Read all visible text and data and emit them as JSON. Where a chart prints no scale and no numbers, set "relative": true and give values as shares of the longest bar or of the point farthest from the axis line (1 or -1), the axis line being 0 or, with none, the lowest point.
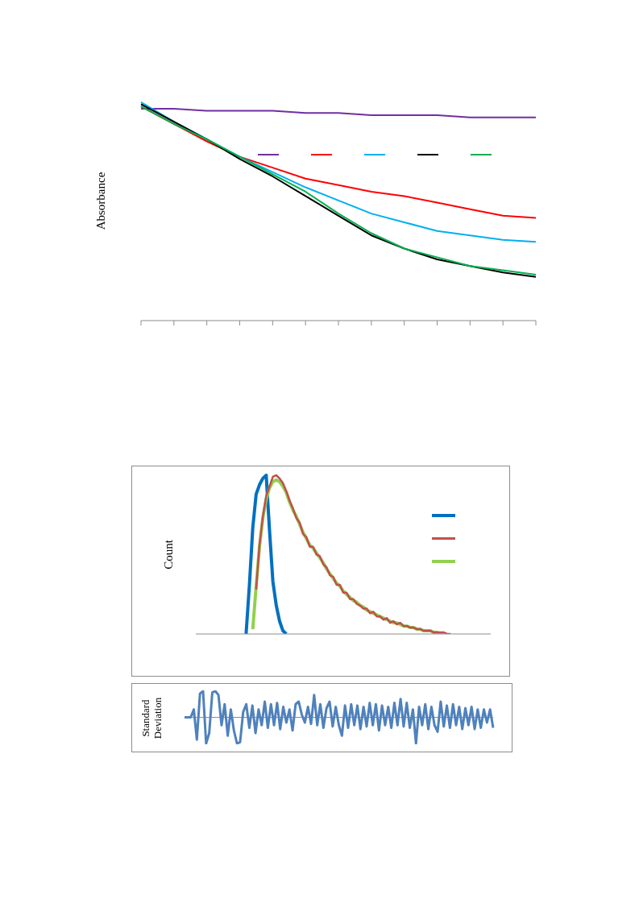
{
  "chart_data": [
    {
      "type": "line",
      "ylabel": "Absorbance",
      "relative": true,
      "marker": "none",
      "grid": false,
      "categories": [
        null,
        null,
        null,
        null,
        null,
        null,
        null,
        null,
        null,
        null,
        null,
        null,
        null
      ],
      "series": [
        {
          "color": "#7030a0",
          "values": [
            0.97,
            0.97,
            0.96,
            0.96,
            0.96,
            0.95,
            0.95,
            0.94,
            0.94,
            0.94,
            0.93,
            0.93,
            0.93
          ]
        },
        {
          "color": "#ff0000",
          "values": [
            0.98,
            0.9,
            0.82,
            0.75,
            0.7,
            0.65,
            0.62,
            0.59,
            0.57,
            0.54,
            0.51,
            0.48,
            0.47
          ]
        },
        {
          "color": "#00b0f0",
          "values": [
            1,
            0.91,
            0.83,
            0.75,
            0.68,
            0.61,
            0.55,
            0.49,
            0.45,
            0.41,
            0.39,
            0.37,
            0.36
          ]
        },
        {
          "color": "#000000",
          "values": [
            0.99,
            0.91,
            0.83,
            0.74,
            0.66,
            0.57,
            0.48,
            0.39,
            0.33,
            0.28,
            0.25,
            0.22,
            0.2
          ]
        },
        {
          "color": "#00b050",
          "values": [
            0.98,
            0.9,
            0.83,
            0.75,
            0.67,
            0.59,
            0.49,
            0.4,
            0.33,
            0.29,
            0.25,
            0.23,
            0.21
          ]
        }
      ]
    },
    {
      "type": "line",
      "ylabel": "Count",
      "relative": true,
      "marker": "none",
      "grid": false,
      "categories": [
        null,
        null,
        null,
        null,
        null,
        null,
        null,
        null,
        null,
        null,
        null,
        null,
        null,
        null,
        null,
        null,
        null,
        null,
        null,
        null,
        null,
        null,
        null,
        null,
        null,
        null,
        null,
        null,
        null,
        null,
        null,
        null,
        null,
        null,
        null,
        null,
        null,
        null,
        null,
        null,
        null,
        null,
        null,
        null,
        null,
        null,
        null,
        null,
        null,
        null,
        null,
        null,
        null,
        null,
        null,
        null,
        null,
        null,
        null,
        null,
        null,
        null,
        null,
        null,
        null,
        null,
        null,
        null,
        null,
        null,
        null,
        null,
        null,
        null,
        null,
        null,
        null,
        null,
        null,
        null,
        null,
        null,
        null,
        null,
        null,
        null,
        null,
        null,
        null
      ],
      "series": [
        {
          "color": "#0070c0",
          "values": [
            null,
            null,
            null,
            null,
            null,
            null,
            null,
            null,
            null,
            null,
            null,
            null,
            null,
            null,
            null,
            0,
            0.31,
            0.67,
            0.88,
            0.94,
            0.98,
            1,
            0.65,
            0.33,
            0.18,
            0.08,
            0.02,
            0,
            null,
            null,
            null,
            null,
            null,
            null,
            null,
            null,
            null,
            null,
            null,
            null,
            null,
            null,
            null,
            null,
            null,
            null,
            null,
            null,
            null,
            null,
            null,
            null,
            null,
            null,
            null,
            null,
            null,
            null,
            null,
            null,
            null,
            null,
            null,
            null,
            null,
            null,
            null,
            null,
            null,
            null,
            null,
            null,
            null,
            null,
            null,
            null,
            null,
            null,
            null,
            null,
            null,
            null,
            null,
            null,
            null,
            null,
            null,
            null,
            null
          ]
        },
        {
          "color": "#c0504d",
          "values": [
            null,
            null,
            null,
            null,
            null,
            null,
            null,
            null,
            null,
            null,
            null,
            null,
            null,
            null,
            null,
            null,
            null,
            null,
            0.28,
            0.56,
            0.74,
            0.87,
            0.93,
            0.99,
            1,
            0.98,
            0.95,
            0.9,
            0.84,
            0.79,
            0.73,
            0.7,
            0.63,
            0.61,
            0.55,
            0.55,
            0.5,
            0.49,
            0.44,
            0.42,
            0.37,
            0.36,
            0.31,
            0.31,
            0.26,
            0.26,
            0.22,
            0.22,
            0.19,
            0.18,
            0.16,
            0.16,
            0.13,
            0.14,
            0.11,
            0.11,
            0.09,
            0.1,
            0.07,
            0.08,
            0.06,
            0.07,
            0.05,
            0.05,
            0.04,
            0.04,
            0.03,
            0.03,
            0.02,
            0.02,
            0.02,
            0.01,
            0.01,
            0.01,
            0.01,
            0,
            0,
            null,
            null,
            null,
            null,
            null,
            null,
            null,
            null,
            null,
            null,
            null,
            null
          ]
        },
        {
          "color": "#92d050",
          "values": [
            null,
            null,
            null,
            null,
            null,
            null,
            null,
            null,
            null,
            null,
            null,
            null,
            null,
            null,
            null,
            null,
            null,
            0.03,
            0.3,
            0.55,
            0.73,
            0.85,
            0.92,
            0.96,
            0.97,
            0.96,
            0.93,
            0.89,
            0.83,
            0.78,
            0.74,
            0.69,
            0.64,
            0.6,
            0.56,
            0.54,
            0.51,
            0.48,
            0.45,
            0.41,
            0.38,
            0.35,
            0.32,
            0.3,
            0.27,
            0.25,
            0.23,
            0.21,
            0.2,
            0.18,
            0.17,
            0.15,
            0.14,
            0.13,
            0.12,
            0.11,
            0.1,
            0.09,
            0.08,
            0.07,
            0.07,
            0.06,
            0.05,
            0.05,
            0.04,
            0.04,
            0.03,
            0.03,
            0.02,
            0.02,
            0.02,
            0.01,
            0.01,
            0,
            0,
            null,
            null,
            null,
            null,
            null,
            null,
            null,
            null,
            null,
            null,
            null,
            null,
            null,
            null
          ]
        }
      ]
    },
    {
      "type": "line",
      "ylabel": "Standard Deviation",
      "relative": true,
      "marker": "none",
      "grid": false,
      "categories": [
        null,
        null,
        null,
        null,
        null,
        null,
        null,
        null,
        null,
        null,
        null,
        null,
        null,
        null,
        null,
        null,
        null,
        null,
        null,
        null,
        null,
        null,
        null,
        null,
        null,
        null,
        null,
        null,
        null,
        null,
        null,
        null,
        null,
        null,
        null,
        null,
        null,
        null,
        null,
        null,
        null,
        null,
        null,
        null,
        null,
        null,
        null,
        null,
        null,
        null,
        null,
        null,
        null,
        null,
        null,
        null,
        null,
        null,
        null,
        null,
        null,
        null,
        null,
        null,
        null,
        null,
        null,
        null,
        null,
        null,
        null,
        null,
        null,
        null,
        null,
        null,
        null,
        null,
        null,
        null,
        null,
        null,
        null,
        null,
        null,
        null,
        null,
        null,
        null,
        null,
        null,
        null,
        null,
        null,
        null,
        null,
        null,
        null,
        null,
        null,
        null
      ],
      "series": [
        {
          "color": "#4f81bd",
          "values": [
            0,
            0,
            0,
            0.3,
            -0.85,
            0.9,
            1,
            -1,
            -0.6,
            0.95,
            1,
            0.85,
            -0.3,
            0.5,
            -0.7,
            0.3,
            -0.5,
            -1,
            -0.95,
            0.2,
            0.5,
            -0.4,
            0.45,
            -0.6,
            0.3,
            -0.3,
            0.6,
            -0.4,
            0.5,
            -0.3,
            0.55,
            -0.45,
            0.4,
            -0.2,
            0.3,
            -0.5,
            0.5,
            0.6,
            0.1,
            -0.2,
            0.4,
            -0.25,
            0.85,
            -0.3,
            0.5,
            -0.4,
            0.35,
            0.6,
            -0.35,
            0.4,
            -0.3,
            -0.7,
            0.45,
            -0.4,
            0.5,
            -0.3,
            0.45,
            -0.45,
            0.4,
            -0.35,
            0.55,
            -0.3,
            0.5,
            -0.5,
            0.45,
            -0.3,
            0.4,
            -0.4,
            0.55,
            -0.3,
            0.7,
            -0.35,
            0.55,
            -0.4,
            0.3,
            -1,
            0.4,
            -0.3,
            0.5,
            -0.45,
            0.4,
            -0.3,
            -0.55,
            0.6,
            -0.35,
            0.45,
            -0.4,
            0.5,
            -0.3,
            0.4,
            -0.45,
            0.35,
            -0.3,
            0.4,
            -0.45,
            0.3,
            -0.4,
            0.3,
            -0.2,
            0.3,
            -0.4
          ]
        }
      ]
    }
  ]
}
